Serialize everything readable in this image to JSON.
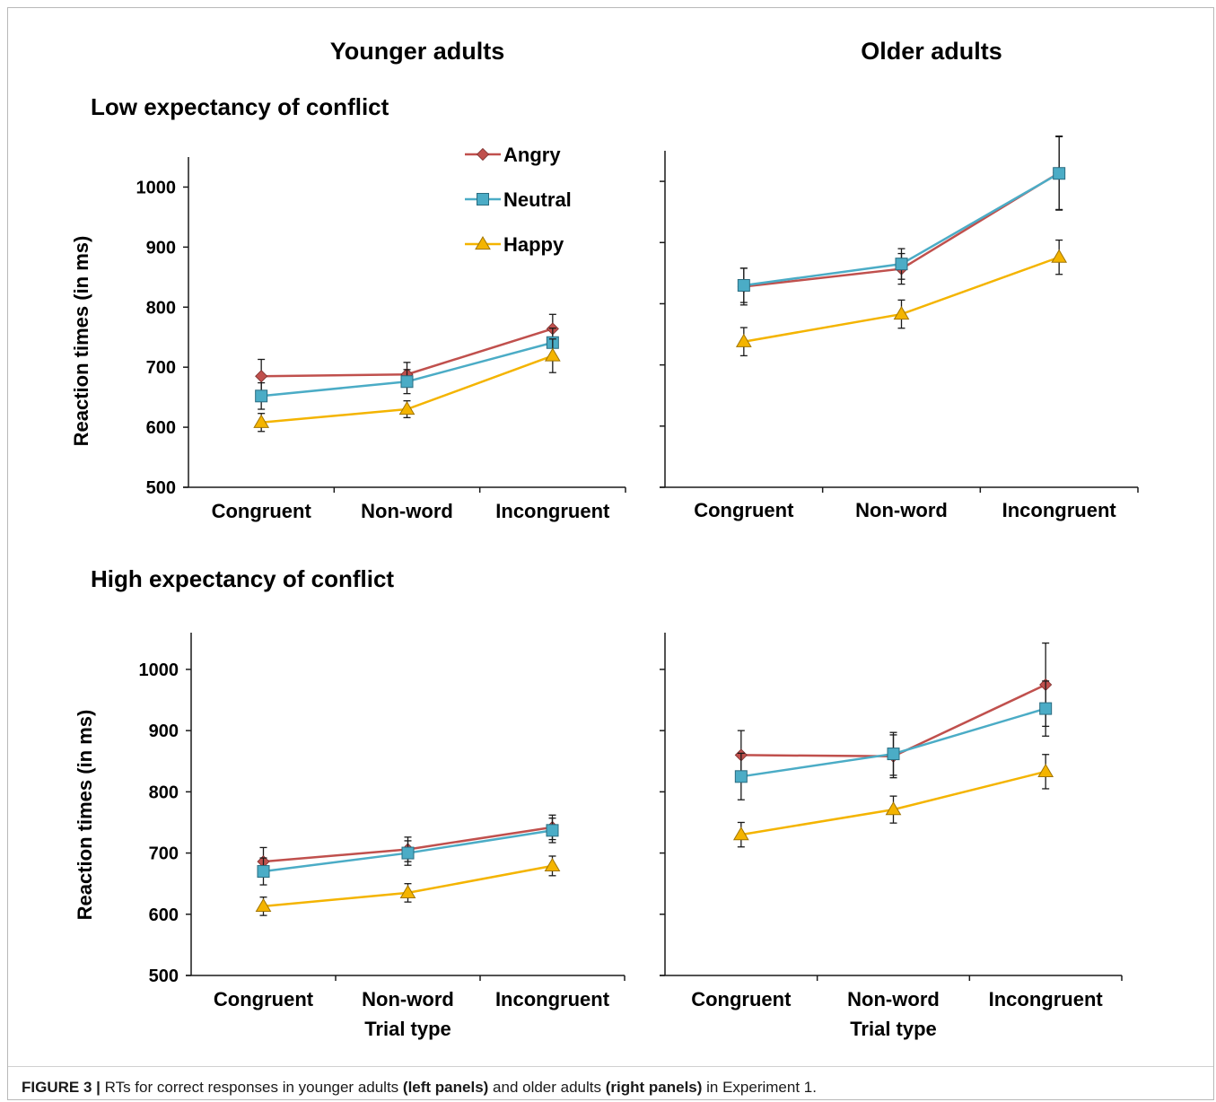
{
  "columns": [
    "Younger adults",
    "Older adults"
  ],
  "rows": [
    "Low expectancy of conflict",
    "High expectancy of conflict"
  ],
  "caption": {
    "label": "FIGURE 3 |",
    "parts": [
      {
        "text": " RTs for correct responses in younger adults ",
        "bold": false
      },
      {
        "text": "(left panels)",
        "bold": true
      },
      {
        "text": " and older adults ",
        "bold": false
      },
      {
        "text": "(right panels)",
        "bold": true
      },
      {
        "text": " in Experiment 1.",
        "bold": false
      }
    ]
  },
  "colors": {
    "Angry": "#c0504d",
    "Neutral": "#4bacc6",
    "Happy": "#f4b400",
    "errorbar": "#1a1a1a",
    "axis": "#1a1a1a"
  },
  "legend": [
    {
      "name": "Angry",
      "marker": "diamond"
    },
    {
      "name": "Neutral",
      "marker": "square"
    },
    {
      "name": "Happy",
      "marker": "triangle"
    }
  ],
  "chart_data": [
    {
      "type": "line",
      "panel": "low-younger",
      "categories": [
        "Congruent",
        "Non-word",
        "Incongruent"
      ],
      "ylabel": "Reaction times (in ms)",
      "xlabel": "",
      "ylim": [
        500,
        1050
      ],
      "yticks": [
        500,
        600,
        700,
        800,
        900,
        1000
      ],
      "show_ytick_labels": true,
      "series": [
        {
          "name": "Angry",
          "values": [
            685,
            688,
            764
          ],
          "errors": [
            28,
            20,
            24
          ]
        },
        {
          "name": "Neutral",
          "values": [
            652,
            676,
            741
          ],
          "errors": [
            22,
            20,
            24
          ]
        },
        {
          "name": "Happy",
          "values": [
            608,
            630,
            719
          ],
          "errors": [
            15,
            14,
            28
          ]
        }
      ]
    },
    {
      "type": "line",
      "panel": "low-older",
      "categories": [
        "Congruent",
        "Non-word",
        "Incongruent"
      ],
      "ylabel": "",
      "xlabel": "",
      "ylim": [
        500,
        1050
      ],
      "yticks": [
        500,
        600,
        700,
        800,
        900,
        1000
      ],
      "show_ytick_labels": false,
      "series": [
        {
          "name": "Angry",
          "values": [
            828,
            857,
            1014
          ],
          "errors": [
            30,
            25,
            60
          ]
        },
        {
          "name": "Neutral",
          "values": [
            830,
            865,
            1013
          ],
          "errors": [
            28,
            25,
            60
          ]
        },
        {
          "name": "Happy",
          "values": [
            738,
            783,
            876
          ],
          "errors": [
            23,
            23,
            28
          ]
        }
      ]
    },
    {
      "type": "line",
      "panel": "high-younger",
      "categories": [
        "Congruent",
        "Non-word",
        "Incongruent"
      ],
      "ylabel": "Reaction times (in ms)",
      "xlabel": "Trial type",
      "ylim": [
        500,
        1060
      ],
      "yticks": [
        500,
        600,
        700,
        800,
        900,
        1000
      ],
      "show_ytick_labels": true,
      "series": [
        {
          "name": "Angry",
          "values": [
            686,
            706,
            742
          ],
          "errors": [
            23,
            20,
            20
          ]
        },
        {
          "name": "Neutral",
          "values": [
            670,
            700,
            737
          ],
          "errors": [
            22,
            20,
            20
          ]
        },
        {
          "name": "Happy",
          "values": [
            613,
            635,
            679
          ],
          "errors": [
            15,
            15,
            16
          ]
        }
      ]
    },
    {
      "type": "line",
      "panel": "high-older",
      "categories": [
        "Congruent",
        "Non-word",
        "Incongruent"
      ],
      "ylabel": "",
      "xlabel": "Trial type",
      "ylim": [
        500,
        1060
      ],
      "yticks": [
        500,
        600,
        700,
        800,
        900,
        1000
      ],
      "show_ytick_labels": false,
      "series": [
        {
          "name": "Angry",
          "values": [
            860,
            858,
            975
          ],
          "errors": [
            40,
            35,
            68
          ]
        },
        {
          "name": "Neutral",
          "values": [
            825,
            862,
            936
          ],
          "errors": [
            38,
            35,
            45
          ]
        },
        {
          "name": "Happy",
          "values": [
            730,
            771,
            833
          ],
          "errors": [
            20,
            22,
            28
          ]
        }
      ]
    }
  ]
}
